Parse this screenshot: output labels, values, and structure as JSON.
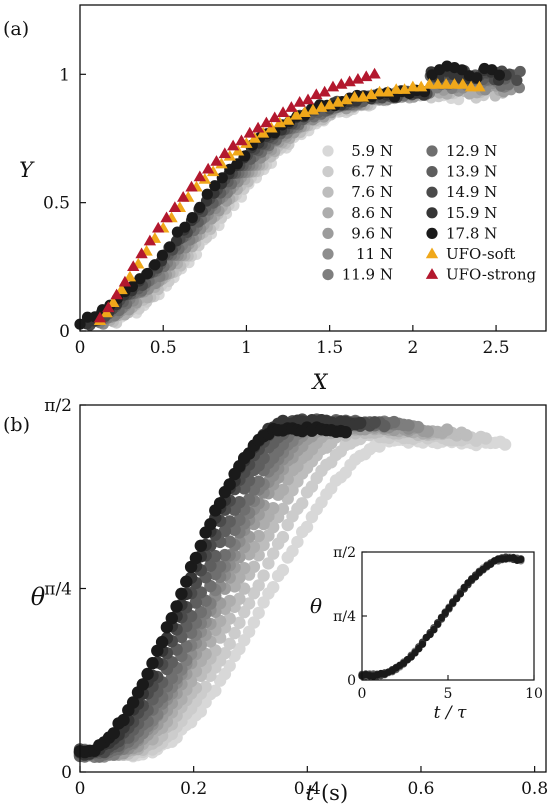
{
  "chart_data": [
    {
      "type": "scatter",
      "panel_label": "(a)",
      "xlabel": "X",
      "ylabel": "Y",
      "xlim": [
        0,
        2.8
      ],
      "ylim": [
        0,
        1.27
      ],
      "xticks": [
        "0",
        "0.5",
        "1",
        "1.5",
        "2",
        "2.5"
      ],
      "yticks": [
        "0",
        "0.5",
        "1"
      ],
      "legend_position": "bottom-right",
      "series": [
        {
          "name": "5.9 N",
          "color": "#d8d8d8",
          "marker": "circle",
          "x_start": 0.25,
          "x_end": 2.45
        },
        {
          "name": "6.7 N",
          "color": "#cccccc",
          "marker": "circle",
          "x_start": 0.22,
          "x_end": 2.5
        },
        {
          "name": "7.6 N",
          "color": "#bdbdbd",
          "marker": "circle",
          "x_start": 0.2,
          "x_end": 2.55
        },
        {
          "name": "8.6 N",
          "color": "#adadad",
          "marker": "circle",
          "x_start": 0.18,
          "x_end": 2.6
        },
        {
          "name": "9.6 N",
          "color": "#9c9c9c",
          "marker": "circle",
          "x_start": 0.16,
          "x_end": 2.62
        },
        {
          "name": "11 N",
          "color": "#8d8d8d",
          "marker": "circle",
          "x_start": 0.14,
          "x_end": 2.64
        },
        {
          "name": "11.9 N",
          "color": "#7e7e7e",
          "marker": "circle",
          "x_start": 0.12,
          "x_end": 2.65
        },
        {
          "name": "12.9 N",
          "color": "#6f6f6f",
          "marker": "circle",
          "x_start": 0.1,
          "x_end": 2.65
        },
        {
          "name": "13.9 N",
          "color": "#5e5e5e",
          "marker": "circle",
          "x_start": 0.08,
          "x_end": 2.65
        },
        {
          "name": "14.9 N",
          "color": "#4b4b4b",
          "marker": "circle",
          "x_start": 0.06,
          "x_end": 2.65
        },
        {
          "name": "15.9 N",
          "color": "#363636",
          "marker": "circle",
          "x_start": 0.04,
          "x_end": 2.6
        },
        {
          "name": "17.8 N",
          "color": "#1a1a1a",
          "marker": "circle",
          "x_start": 0.0,
          "x_end": 2.55
        },
        {
          "name": "UFO-soft",
          "color": "#f0a81a",
          "marker": "triangle",
          "x": [
            0.12,
            0.16,
            0.2,
            0.25,
            0.3,
            0.35,
            0.4,
            0.45,
            0.5,
            0.55,
            0.6,
            0.65,
            0.7,
            0.75,
            0.8,
            0.85,
            0.9,
            0.95,
            1.0,
            1.05,
            1.1,
            1.15,
            1.2,
            1.25,
            1.3,
            1.35,
            1.4,
            1.45,
            1.5,
            1.55,
            1.6,
            1.65,
            1.7,
            1.75,
            1.8,
            1.85,
            1.9,
            1.95,
            2.0,
            2.05,
            2.1,
            2.15,
            2.2,
            2.25,
            2.3,
            2.35,
            2.4
          ],
          "y": [
            0.04,
            0.07,
            0.11,
            0.16,
            0.21,
            0.26,
            0.31,
            0.36,
            0.4,
            0.44,
            0.48,
            0.52,
            0.56,
            0.59,
            0.62,
            0.65,
            0.68,
            0.7,
            0.73,
            0.75,
            0.77,
            0.79,
            0.81,
            0.82,
            0.84,
            0.85,
            0.86,
            0.87,
            0.88,
            0.89,
            0.9,
            0.91,
            0.91,
            0.92,
            0.93,
            0.93,
            0.94,
            0.94,
            0.95,
            0.95,
            0.96,
            0.96,
            0.96,
            0.96,
            0.96,
            0.95,
            0.95
          ]
        },
        {
          "name": "UFO-strong",
          "color": "#b3182e",
          "marker": "triangle",
          "x": [
            0.12,
            0.17,
            0.22,
            0.27,
            0.32,
            0.37,
            0.42,
            0.47,
            0.52,
            0.57,
            0.62,
            0.67,
            0.72,
            0.77,
            0.82,
            0.87,
            0.92,
            0.97,
            1.02,
            1.07,
            1.12,
            1.17,
            1.22,
            1.27,
            1.32,
            1.37,
            1.42,
            1.47,
            1.52,
            1.57,
            1.62,
            1.67,
            1.72,
            1.77
          ],
          "y": [
            0.05,
            0.09,
            0.14,
            0.19,
            0.25,
            0.3,
            0.35,
            0.4,
            0.44,
            0.48,
            0.52,
            0.56,
            0.6,
            0.63,
            0.66,
            0.69,
            0.72,
            0.74,
            0.77,
            0.79,
            0.81,
            0.83,
            0.85,
            0.87,
            0.89,
            0.9,
            0.92,
            0.93,
            0.95,
            0.96,
            0.97,
            0.98,
            0.99,
            1.0
          ]
        }
      ]
    },
    {
      "type": "scatter",
      "panel_label": "(b)",
      "xlabel": "t (s)",
      "ylabel": "θ",
      "xlim": [
        0,
        0.82
      ],
      "ylim": [
        0,
        1.5708
      ],
      "xticks": [
        "0",
        "0.2",
        "0.4",
        "0.6",
        "0.8"
      ],
      "yticks": [
        "0",
        "π/4",
        "π/2"
      ],
      "series": [
        {
          "name": "5.9 N",
          "color": "#d8d8d8",
          "t_onset": 0.1,
          "t_rise": 0.56,
          "t_end": 0.75,
          "theta_max": 1.42
        },
        {
          "name": "6.7 N",
          "color": "#cccccc",
          "t_onset": 0.09,
          "t_rise": 0.52,
          "t_end": 0.72,
          "theta_max": 1.44
        },
        {
          "name": "7.6 N",
          "color": "#bdbdbd",
          "t_onset": 0.08,
          "t_rise": 0.49,
          "t_end": 0.68,
          "theta_max": 1.46
        },
        {
          "name": "8.6 N",
          "color": "#adadad",
          "t_onset": 0.07,
          "t_rise": 0.47,
          "t_end": 0.65,
          "theta_max": 1.47
        },
        {
          "name": "9.6 N",
          "color": "#9c9c9c",
          "t_onset": 0.06,
          "t_rise": 0.45,
          "t_end": 0.62,
          "theta_max": 1.48
        },
        {
          "name": "11 N",
          "color": "#8d8d8d",
          "t_onset": 0.05,
          "t_rise": 0.44,
          "t_end": 0.6,
          "theta_max": 1.49
        },
        {
          "name": "11.9 N",
          "color": "#7e7e7e",
          "t_onset": 0.05,
          "t_rise": 0.43,
          "t_end": 0.58,
          "theta_max": 1.5
        },
        {
          "name": "12.9 N",
          "color": "#6f6f6f",
          "t_onset": 0.04,
          "t_rise": 0.42,
          "t_end": 0.56,
          "theta_max": 1.5
        },
        {
          "name": "13.9 N",
          "color": "#5e5e5e",
          "t_onset": 0.03,
          "t_rise": 0.4,
          "t_end": 0.54,
          "theta_max": 1.5
        },
        {
          "name": "14.9 N",
          "color": "#4b4b4b",
          "t_onset": 0.02,
          "t_rise": 0.38,
          "t_end": 0.52,
          "theta_max": 1.5
        },
        {
          "name": "15.9 N",
          "color": "#363636",
          "t_onset": 0.01,
          "t_rise": 0.37,
          "t_end": 0.5,
          "theta_max": 1.5
        },
        {
          "name": "17.8 N",
          "color": "#1a1a1a",
          "t_onset": 0.0,
          "t_rise": 0.36,
          "t_end": 0.47,
          "theta_max": 1.47
        }
      ]
    },
    {
      "type": "scatter",
      "inset": true,
      "xlabel": "t / τ",
      "ylabel": "θ",
      "xlim": [
        0,
        10
      ],
      "ylim": [
        0,
        1.5708
      ],
      "xticks": [
        "0",
        "5",
        "10"
      ],
      "yticks": [
        "0",
        "π/4",
        "π/2"
      ],
      "series_note": "all curves collapse",
      "x_end": 9.3,
      "theta_max": 1.5
    }
  ]
}
